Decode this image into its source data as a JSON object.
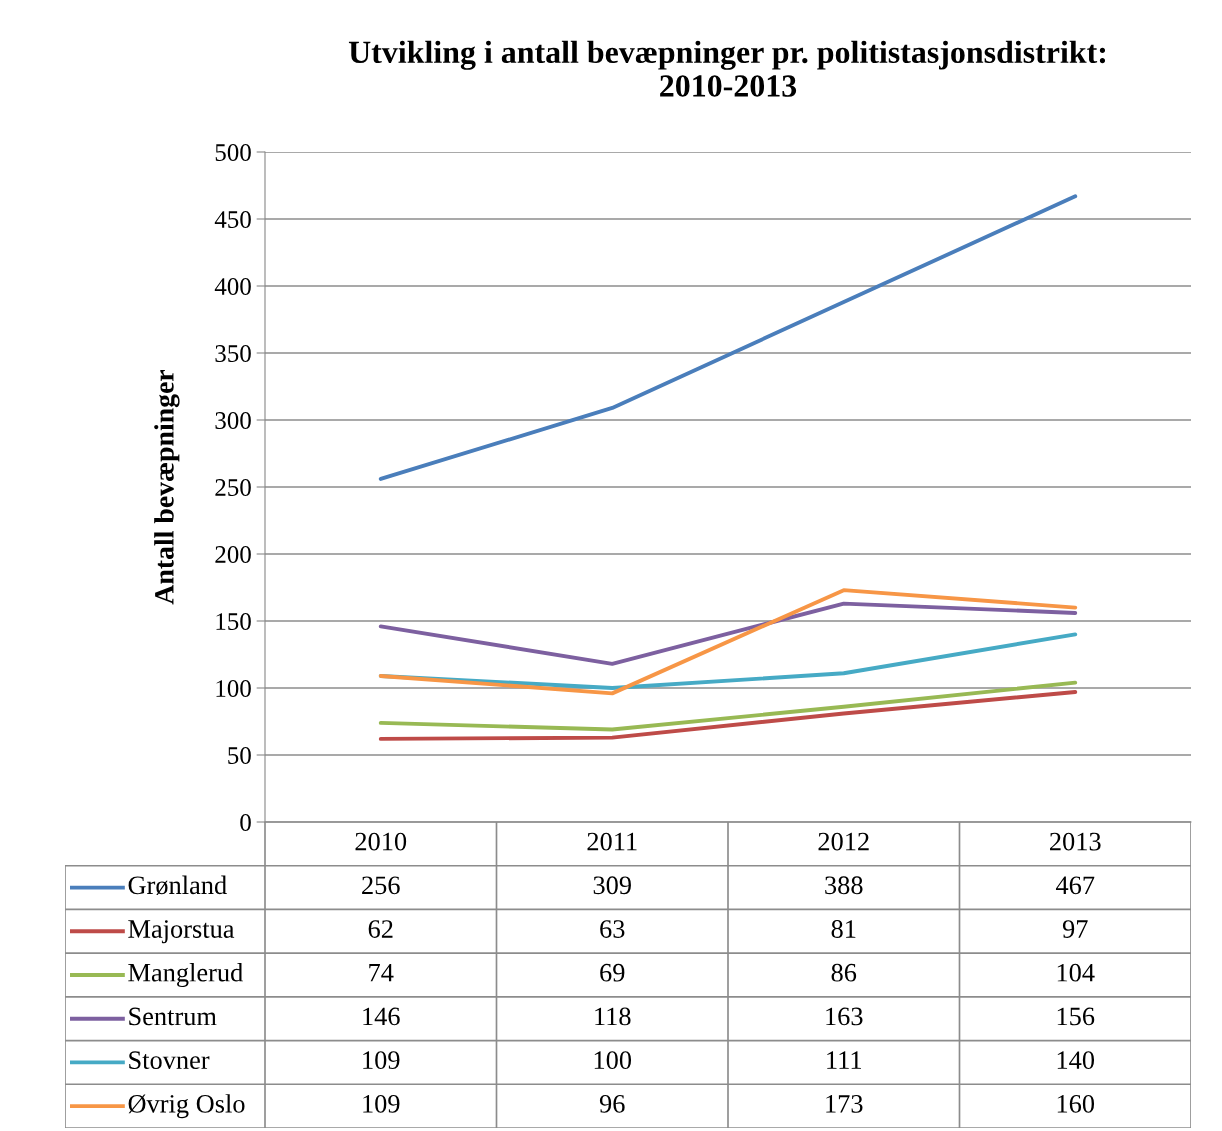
{
  "chart_data": {
    "type": "line",
    "title": "Utvikling i antall bevæpninger pr. politistasjonsdistrikt:\n2010-2013",
    "ylabel": "Antall bevæpninger",
    "categories": [
      "2010",
      "2011",
      "2012",
      "2013"
    ],
    "series": [
      {
        "name": "Grønland",
        "color": "#4a7ebb",
        "values": [
          256,
          309,
          388,
          467
        ]
      },
      {
        "name": "Majorstua",
        "color": "#be4b48",
        "values": [
          62,
          63,
          81,
          97
        ]
      },
      {
        "name": "Manglerud",
        "color": "#98b954",
        "values": [
          74,
          69,
          86,
          104
        ]
      },
      {
        "name": "Sentrum",
        "color": "#7d60a0",
        "values": [
          146,
          118,
          163,
          156
        ]
      },
      {
        "name": "Stovner",
        "color": "#46aac5",
        "values": [
          109,
          100,
          111,
          140
        ]
      },
      {
        "name": "Øvrig Oslo",
        "color": "#f79646",
        "values": [
          109,
          96,
          173,
          160
        ]
      }
    ],
    "ylim": [
      0,
      500
    ],
    "yticks": [
      0,
      50,
      100,
      150,
      200,
      250,
      300,
      350,
      400,
      450,
      500
    ],
    "grid": "y",
    "legend": "bottom",
    "data_labels": true,
    "marker": "none",
    "line_style": "solid"
  }
}
